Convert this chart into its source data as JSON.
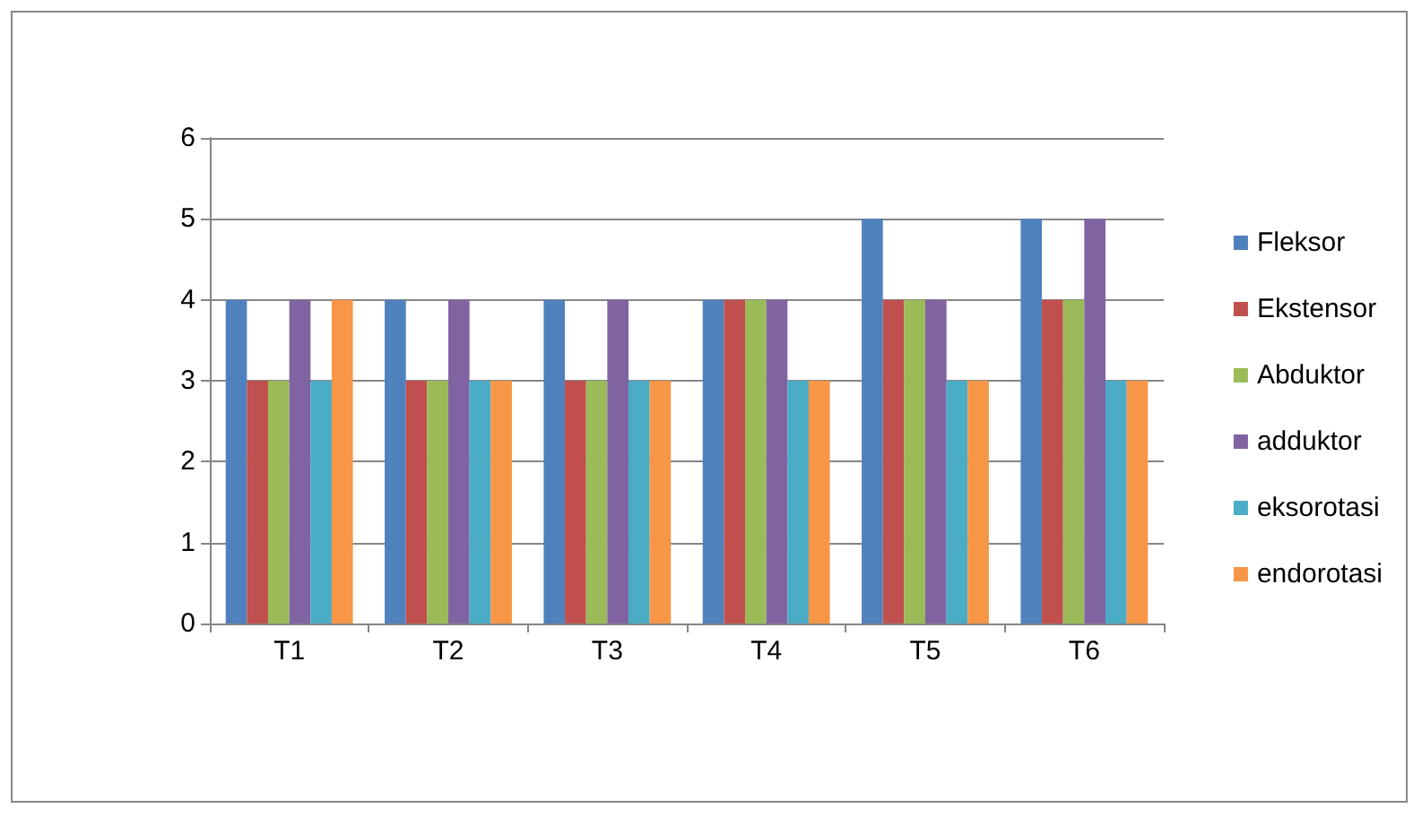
{
  "chart_data": {
    "type": "bar",
    "categories": [
      "T1",
      "T2",
      "T3",
      "T4",
      "T5",
      "T6"
    ],
    "series": [
      {
        "name": "Fleksor",
        "color": "#4f81bd",
        "values": [
          4,
          4,
          4,
          4,
          5,
          5
        ]
      },
      {
        "name": "Ekstensor",
        "color": "#c0504d",
        "values": [
          3,
          3,
          3,
          4,
          4,
          4
        ]
      },
      {
        "name": "Abduktor",
        "color": "#9bbb59",
        "values": [
          3,
          3,
          3,
          4,
          4,
          4
        ]
      },
      {
        "name": "adduktor",
        "color": "#8064a2",
        "values": [
          4,
          4,
          4,
          4,
          4,
          5
        ]
      },
      {
        "name": "eksorotasi",
        "color": "#4bacc6",
        "values": [
          3,
          3,
          3,
          3,
          3,
          3
        ]
      },
      {
        "name": "endorotasi",
        "color": "#f79646",
        "values": [
          4,
          3,
          3,
          3,
          3,
          3
        ]
      }
    ],
    "ylim": [
      0,
      6
    ],
    "yticks": [
      0,
      1,
      2,
      3,
      4,
      5,
      6
    ],
    "grid": "y",
    "legend": "right"
  }
}
